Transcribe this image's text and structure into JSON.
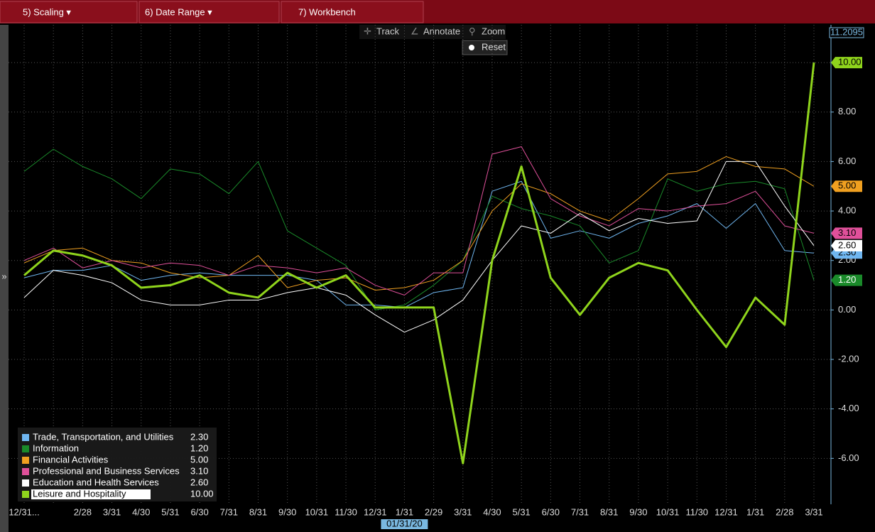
{
  "ui": {
    "tabs": [
      "5) Scaling ▾",
      "6) Date Range ▾",
      "7) Workbench"
    ],
    "tools": [
      "Track",
      "Annotate",
      "Zoom"
    ],
    "reset": "Reset",
    "crosshair_date": "01/31/20",
    "side_arrow": "»"
  },
  "chart_data": {
    "type": "line",
    "categories": [
      "12/31...",
      null,
      "2/28",
      "3/31",
      "4/30",
      "5/31",
      "6/30",
      "7/31",
      "8/31",
      "9/30",
      "10/31",
      "11/30",
      "12/31",
      "1/31",
      "2/29",
      "3/31",
      "4/30",
      "5/31",
      "6/30",
      "7/31",
      "8/31",
      "9/30",
      "10/31",
      "11/30",
      "12/31",
      "1/31",
      "2/28",
      "3/31"
    ],
    "ylim": [
      -7.8,
      11.2095
    ],
    "yticks": [
      {
        "value": -6,
        "label": "-6.00"
      },
      {
        "value": -4,
        "label": "-4.00"
      },
      {
        "value": -2,
        "label": "-2.00"
      },
      {
        "value": 0,
        "label": "0.00"
      },
      {
        "value": 2,
        "label": "2.00"
      },
      {
        "value": 4,
        "label": "4.00"
      },
      {
        "value": 6,
        "label": "6.00"
      },
      {
        "value": 8,
        "label": "8.00"
      },
      {
        "value": 10,
        "label": "10.00"
      },
      11.2095
    ],
    "grid": true,
    "legend": "lower left",
    "series": [
      {
        "name": "Trade, Transportation, and Utilities",
        "color": "#6fb6f0",
        "width": 1,
        "legend_value": "2.30",
        "values": [
          1.3,
          1.6,
          1.6,
          1.8,
          1.2,
          1.4,
          1.5,
          1.4,
          1.4,
          1.4,
          1.2,
          0.2,
          0.2,
          0.1,
          0.7,
          0.9,
          4.8,
          5.2,
          2.9,
          3.2,
          2.9,
          3.5,
          3.8,
          4.3,
          3.3,
          4.3,
          2.4,
          2.3
        ]
      },
      {
        "name": "Information",
        "color": "#1a8a2a",
        "width": 1,
        "legend_value": "1.20",
        "values": [
          5.6,
          6.5,
          5.8,
          5.3,
          4.5,
          5.7,
          5.5,
          4.7,
          6.0,
          3.2,
          2.5,
          1.8,
          0.0,
          0.2,
          1.0,
          2.0,
          4.6,
          4.1,
          3.8,
          3.4,
          1.9,
          2.4,
          5.3,
          4.8,
          5.1,
          5.2,
          4.9,
          1.2
        ]
      },
      {
        "name": "Financial Activities",
        "color": "#f0a020",
        "width": 1,
        "legend_value": "5.00",
        "values": [
          1.9,
          2.4,
          2.5,
          2.0,
          1.9,
          1.5,
          1.3,
          1.4,
          2.2,
          0.9,
          1.2,
          1.3,
          0.8,
          0.9,
          1.2,
          2.0,
          4.0,
          5.1,
          4.7,
          4.0,
          3.6,
          4.5,
          5.5,
          5.6,
          6.2,
          5.8,
          5.7,
          5.0
        ]
      },
      {
        "name": "Professional and Business Services",
        "color": "#e0509a",
        "width": 1,
        "legend_value": "3.10",
        "values": [
          2.0,
          2.5,
          1.7,
          2.0,
          1.7,
          1.9,
          1.8,
          1.4,
          1.8,
          1.7,
          1.5,
          1.7,
          1.0,
          0.6,
          1.5,
          1.5,
          6.3,
          6.6,
          4.5,
          3.8,
          3.4,
          4.1,
          4.0,
          4.2,
          4.3,
          4.8,
          3.4,
          3.1
        ]
      },
      {
        "name": "Education and Health Services",
        "color": "#ffffff",
        "width": 1,
        "legend_value": "2.60",
        "values": [
          0.5,
          1.6,
          1.4,
          1.1,
          0.4,
          0.2,
          0.2,
          0.4,
          0.4,
          0.7,
          0.9,
          0.6,
          -0.2,
          -0.9,
          -0.4,
          0.4,
          2.0,
          3.4,
          3.1,
          3.9,
          3.2,
          3.7,
          3.5,
          3.6,
          6.0,
          6.0,
          4.2,
          2.6
        ]
      },
      {
        "name": "Leisure and Hospitality",
        "color": "#8fd41c",
        "width": 3,
        "legend_value": "10.00",
        "values": [
          1.4,
          2.4,
          2.2,
          1.8,
          0.9,
          1.0,
          1.4,
          0.7,
          0.5,
          1.5,
          0.9,
          1.4,
          0.1,
          0.1,
          0.1,
          -6.2,
          2.0,
          5.8,
          1.3,
          -0.2,
          1.3,
          1.9,
          1.6,
          0.0,
          -1.5,
          0.5,
          -0.6,
          10.0
        ]
      }
    ]
  }
}
